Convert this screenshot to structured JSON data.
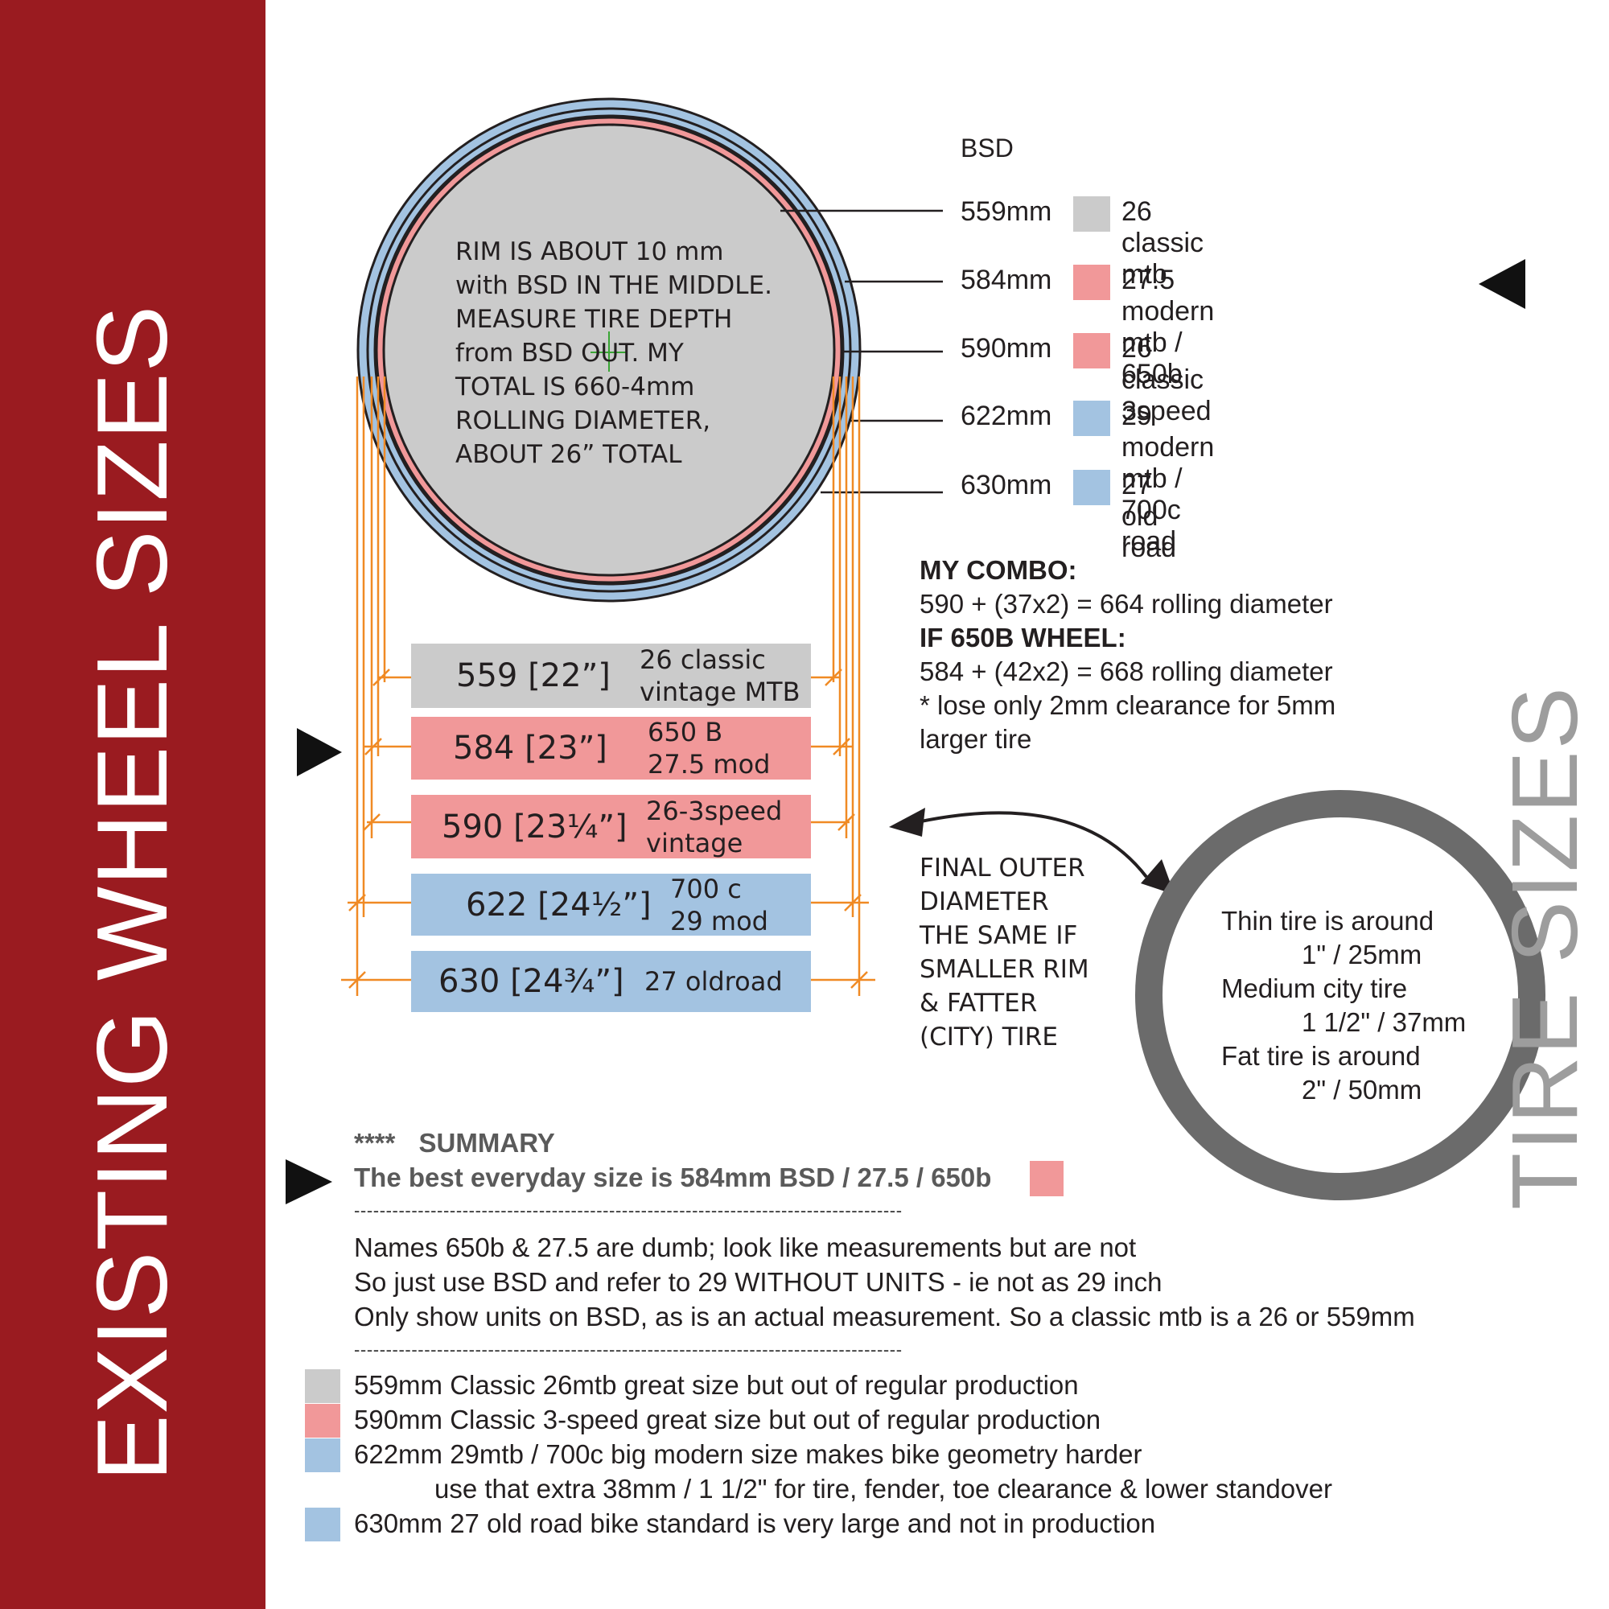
{
  "titles": {
    "side": "EXISTING WHEEL SIZES",
    "tire": "TIRE SIZES"
  },
  "colors": {
    "brand_red": "#9a1b20",
    "gray": "#cbcbcb",
    "pink": "#f19899",
    "blue": "#a3c3e1",
    "orange": "#f08a24",
    "dark_ring": "#6b6b6b"
  },
  "rim_note": [
    "RIM IS ABOUT 10 mm",
    "with BSD IN THE MIDDLE.",
    "MEASURE TIRE DEPTH",
    "from BSD OUT. MY",
    "TOTAL IS 660-4mm",
    "ROLLING DIAMETER,",
    "ABOUT 26” TOTAL"
  ],
  "legend": {
    "header": "BSD",
    "rows": [
      {
        "bsd": "559mm",
        "color": "gray",
        "name": "26 classic mtb"
      },
      {
        "bsd": "584mm",
        "color": "pink",
        "name": "27.5 modern mtb  /  650b"
      },
      {
        "bsd": "590mm",
        "color": "pink",
        "name": "26 classic 3speed"
      },
      {
        "bsd": "622mm",
        "color": "blue",
        "name": "29 modern mtb  /  700c  road"
      },
      {
        "bsd": "630mm",
        "color": "blue",
        "name": "27 old road"
      }
    ]
  },
  "combo": {
    "heading": "MY COMBO:",
    "line1": "590 + (37x2) = 664 rolling diameter",
    "heading2": "IF 650B WHEEL:",
    "line2": "584 + (42x2) = 668 rolling diameter",
    "line3": "* lose only 2mm clearance for 5mm",
    "line4": "larger tire"
  },
  "size_table": [
    {
      "main": "559  [22”]",
      "note1": "26 classic",
      "note2": "vintage MTB",
      "color": "gray"
    },
    {
      "main": "584  [23”]",
      "note1": "650 B",
      "note2": "27.5 mod",
      "color": "pink"
    },
    {
      "main": "590  [23¼”]",
      "note1": "26-3speed",
      "note2": "vintage",
      "color": "pink"
    },
    {
      "main": "622  [24½”]",
      "note1": "700 c",
      "note2": "29 mod",
      "color": "blue"
    },
    {
      "main": "630  [24¾”]",
      "note1": "27 oldroad",
      "note2": "",
      "color": "blue"
    }
  ],
  "final_note": [
    "FINAL OUTER",
    "DIAMETER",
    "THE SAME IF",
    "SMALLER RIM",
    "& FATTER",
    "(CITY) TIRE"
  ],
  "tire_note": {
    "l1": "Thin tire is around",
    "l2": "1\" / 25mm",
    "l3": "Medium city tire",
    "l4": "1 1/2\" / 37mm",
    "l5": "Fat tire is around",
    "l6": "2\" / 50mm"
  },
  "summary": {
    "heading_stars": "****",
    "heading": "SUMMARY",
    "best": "The best everyday size is 584mm BSD / 27.5 / 650b",
    "divider": "--------------------------------------------------------------------------------------",
    "notes": [
      "Names 650b & 27.5 are dumb; look like measurements but are not",
      "So just use BSD and refer to 29 WITHOUT UNITS - ie not as 29 inch",
      "Only show units on BSD, as is an actual measurement. So a classic mtb is a 26 or 559mm"
    ],
    "items": [
      {
        "color": "gray",
        "text": "559mm Classic 26mtb great size but out of regular production"
      },
      {
        "color": "pink",
        "text": "590mm Classic 3-speed great size but out of regular production"
      },
      {
        "color": "blue",
        "text": "622mm 29mtb / 700c big modern size makes bike geometry harder"
      },
      {
        "color": "",
        "text": "use that extra 38mm / 1 1/2\" for tire, fender, toe clearance & lower standover"
      },
      {
        "color": "blue",
        "text": "630mm 27 old road bike standard is very large and not in production"
      }
    ]
  }
}
